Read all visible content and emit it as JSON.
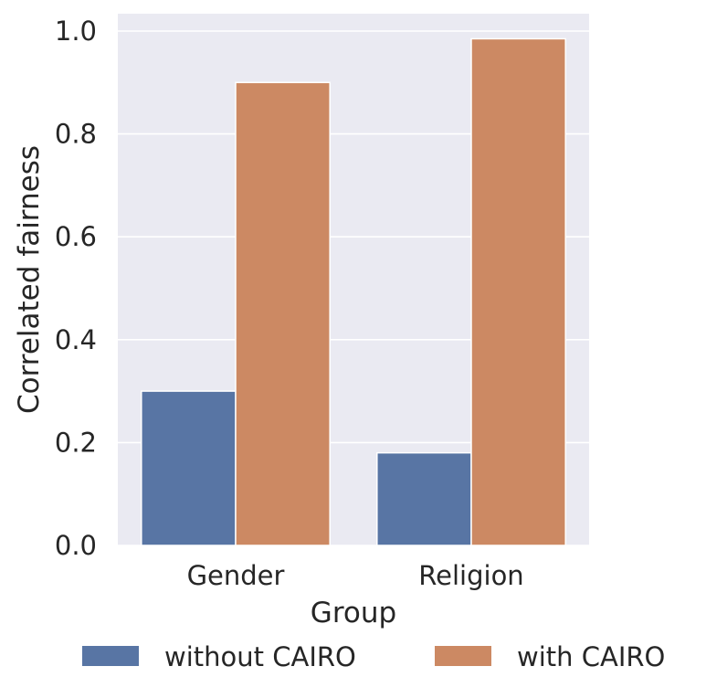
{
  "chart_data": {
    "type": "bar",
    "xlabel": "Group",
    "ylabel": "Correlated fairness",
    "categories": [
      "Gender",
      "Religion"
    ],
    "series": [
      {
        "name": "without CAIRO",
        "values": [
          0.3,
          0.18
        ],
        "color": "#5875a4"
      },
      {
        "name": "with CAIRO",
        "values": [
          0.9,
          0.985
        ],
        "color": "#cc8963"
      }
    ],
    "ylim": [
      0,
      1.03
    ],
    "yticks": [
      "0.0",
      "0.2",
      "0.4",
      "0.6",
      "0.8",
      "1.0"
    ],
    "grid": true,
    "legend_position": "bottom",
    "plot_background": "#eaeaf2"
  }
}
